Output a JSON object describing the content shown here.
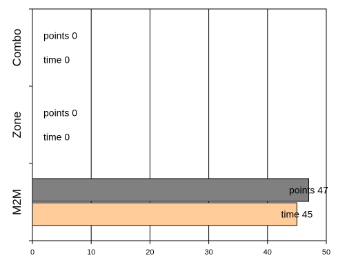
{
  "chart_data": {
    "type": "bar",
    "orientation": "horizontal",
    "categories": [
      "Combo",
      "Zone",
      "M2M"
    ],
    "series": [
      {
        "name": "points",
        "values": [
          0,
          0,
          47
        ],
        "color": "#808080"
      },
      {
        "name": "time",
        "values": [
          0,
          0,
          45
        ],
        "color": "#ffcc99"
      }
    ],
    "data_labels": [
      [
        "points 0",
        "points 0",
        "points 47"
      ],
      [
        "time 0",
        "time 0",
        "time 45"
      ]
    ],
    "xlim": [
      0,
      50
    ],
    "xticks": [
      0,
      10,
      20,
      30,
      40,
      50
    ],
    "xtick_labels": [
      "0",
      "10",
      "20",
      "30",
      "40",
      "50"
    ],
    "grid": "vertical",
    "legend": "none",
    "title": "",
    "xlabel": "",
    "ylabel": ""
  }
}
